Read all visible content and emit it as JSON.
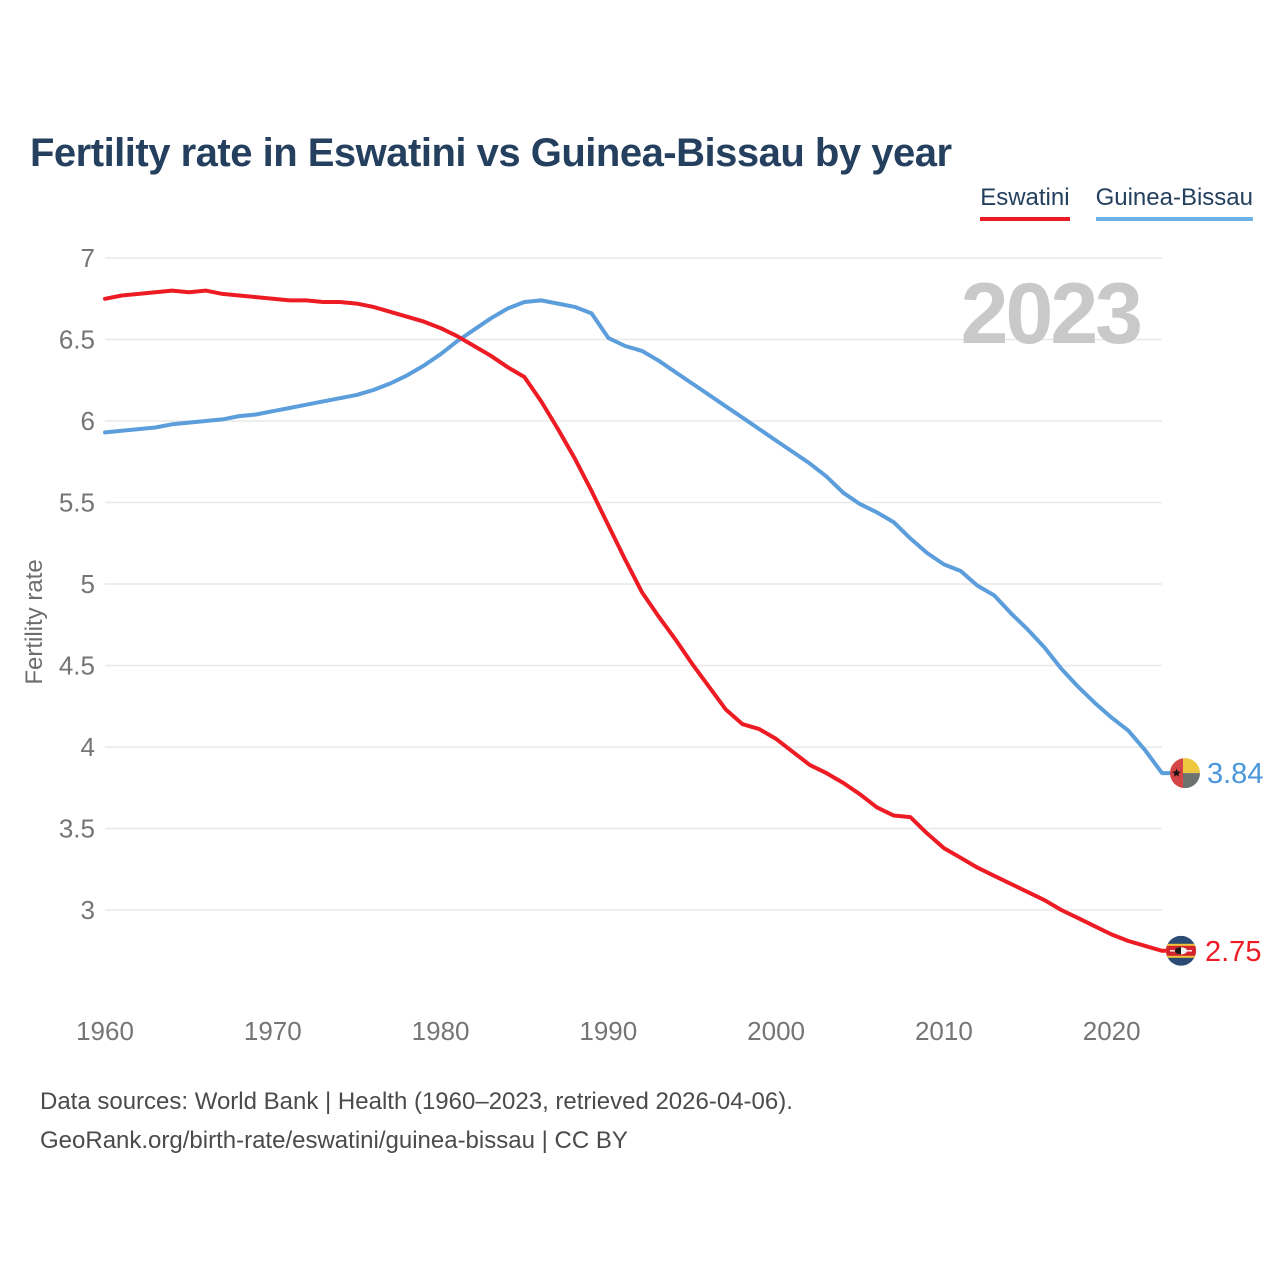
{
  "title": "Fertility rate in Eswatini vs Guinea-Bissau by year",
  "watermark": "2023",
  "legend": {
    "items": [
      {
        "label": "Eswatini",
        "underline": "#ed1c24"
      },
      {
        "label": "Guinea-Bissau",
        "underline": "#6db3e8"
      }
    ]
  },
  "y_axis": {
    "label": "Fertility rate",
    "ticks": [
      {
        "value": 7,
        "label": "7"
      },
      {
        "value": 6.5,
        "label": "6.5"
      },
      {
        "value": 6,
        "label": "6"
      },
      {
        "value": 5.5,
        "label": "5.5"
      },
      {
        "value": 5,
        "label": "5"
      },
      {
        "value": 4.5,
        "label": "4.5"
      },
      {
        "value": 4,
        "label": "4"
      },
      {
        "value": 3.5,
        "label": "3.5"
      },
      {
        "value": 3,
        "label": "3"
      }
    ]
  },
  "x_axis": {
    "ticks": [
      {
        "value": 1960,
        "label": "1960"
      },
      {
        "value": 1970,
        "label": "1970"
      },
      {
        "value": 1980,
        "label": "1980"
      },
      {
        "value": 1990,
        "label": "1990"
      },
      {
        "value": 2000,
        "label": "2000"
      },
      {
        "value": 2010,
        "label": "2010"
      },
      {
        "value": 2020,
        "label": "2020"
      }
    ]
  },
  "end_labels": {
    "guinea_bissau": "3.84",
    "eswatini": "2.75"
  },
  "footer": {
    "line1": "Data sources: World Bank | Health (1960–2023, retrieved 2026-04-06).",
    "line2": "GeoRank.org/birth-rate/eswatini/guinea-bissau | CC BY"
  },
  "colors": {
    "title": "#24405e",
    "legend_text": "#24405e",
    "tick": "#757575",
    "axis_title": "#6e6e6e",
    "gridline": "#e8e8e8",
    "watermark": "#c9c9c9",
    "footer": "#4b4b4b",
    "eswatini_line": "#ed1c24",
    "guinea_bissau_line": "#5b9edb",
    "eswatini_label": "#ed1c24",
    "guinea_bissau_label": "#4a97db"
  },
  "flags": {
    "guinea_bissau": {
      "red": "#d64545",
      "yellow": "#edc73f",
      "green": "#6e7370",
      "star": "#111111"
    },
    "eswatini": {
      "navy": "#2b4a74",
      "yellow": "#f0c53c",
      "red": "#d5232d",
      "shield_white": "#f2f2f2",
      "shield_black": "#1a1a1a"
    }
  },
  "chart_data": {
    "type": "line",
    "title": "Fertility rate in Eswatini vs Guinea-Bissau by year",
    "xlabel": "",
    "ylabel": "Fertility rate",
    "xlim": [
      1960,
      2023
    ],
    "ylim": [
      2.6,
      7.05
    ],
    "grid": "horizontal",
    "legend_position": "top-right",
    "x": [
      1960,
      1961,
      1962,
      1963,
      1964,
      1965,
      1966,
      1967,
      1968,
      1969,
      1970,
      1971,
      1972,
      1973,
      1974,
      1975,
      1976,
      1977,
      1978,
      1979,
      1980,
      1981,
      1982,
      1983,
      1984,
      1985,
      1986,
      1987,
      1988,
      1989,
      1990,
      1991,
      1992,
      1993,
      1994,
      1995,
      1996,
      1997,
      1998,
      1999,
      2000,
      2001,
      2002,
      2003,
      2004,
      2005,
      2006,
      2007,
      2008,
      2009,
      2010,
      2011,
      2012,
      2013,
      2014,
      2015,
      2016,
      2017,
      2018,
      2019,
      2020,
      2021,
      2022,
      2023
    ],
    "series": [
      {
        "name": "Eswatini",
        "color": "#ed1c24",
        "values": [
          6.75,
          6.77,
          6.78,
          6.79,
          6.8,
          6.79,
          6.8,
          6.78,
          6.77,
          6.76,
          6.75,
          6.74,
          6.74,
          6.73,
          6.73,
          6.72,
          6.7,
          6.67,
          6.64,
          6.61,
          6.57,
          6.52,
          6.46,
          6.4,
          6.33,
          6.27,
          6.12,
          5.95,
          5.77,
          5.57,
          5.36,
          5.15,
          4.95,
          4.8,
          4.66,
          4.51,
          4.37,
          4.23,
          4.14,
          4.11,
          4.05,
          3.97,
          3.89,
          3.84,
          3.78,
          3.71,
          3.63,
          3.58,
          3.57,
          3.47,
          3.38,
          3.32,
          3.26,
          3.21,
          3.16,
          3.11,
          3.06,
          3.0,
          2.95,
          2.9,
          2.85,
          2.81,
          2.78,
          2.75
        ]
      },
      {
        "name": "Guinea-Bissau",
        "color": "#5b9edb",
        "values": [
          5.93,
          5.94,
          5.95,
          5.96,
          5.98,
          5.99,
          6.0,
          6.01,
          6.03,
          6.04,
          6.06,
          6.08,
          6.1,
          6.12,
          6.14,
          6.16,
          6.19,
          6.23,
          6.28,
          6.34,
          6.41,
          6.49,
          6.56,
          6.63,
          6.69,
          6.73,
          6.74,
          6.72,
          6.7,
          6.66,
          6.51,
          6.46,
          6.43,
          6.37,
          6.3,
          6.23,
          6.16,
          6.09,
          6.02,
          5.95,
          5.88,
          5.81,
          5.74,
          5.66,
          5.56,
          5.49,
          5.44,
          5.38,
          5.28,
          5.19,
          5.12,
          5.08,
          4.99,
          4.93,
          4.82,
          4.72,
          4.61,
          4.48,
          4.37,
          4.27,
          4.18,
          4.1,
          3.98,
          3.84
        ]
      }
    ]
  }
}
